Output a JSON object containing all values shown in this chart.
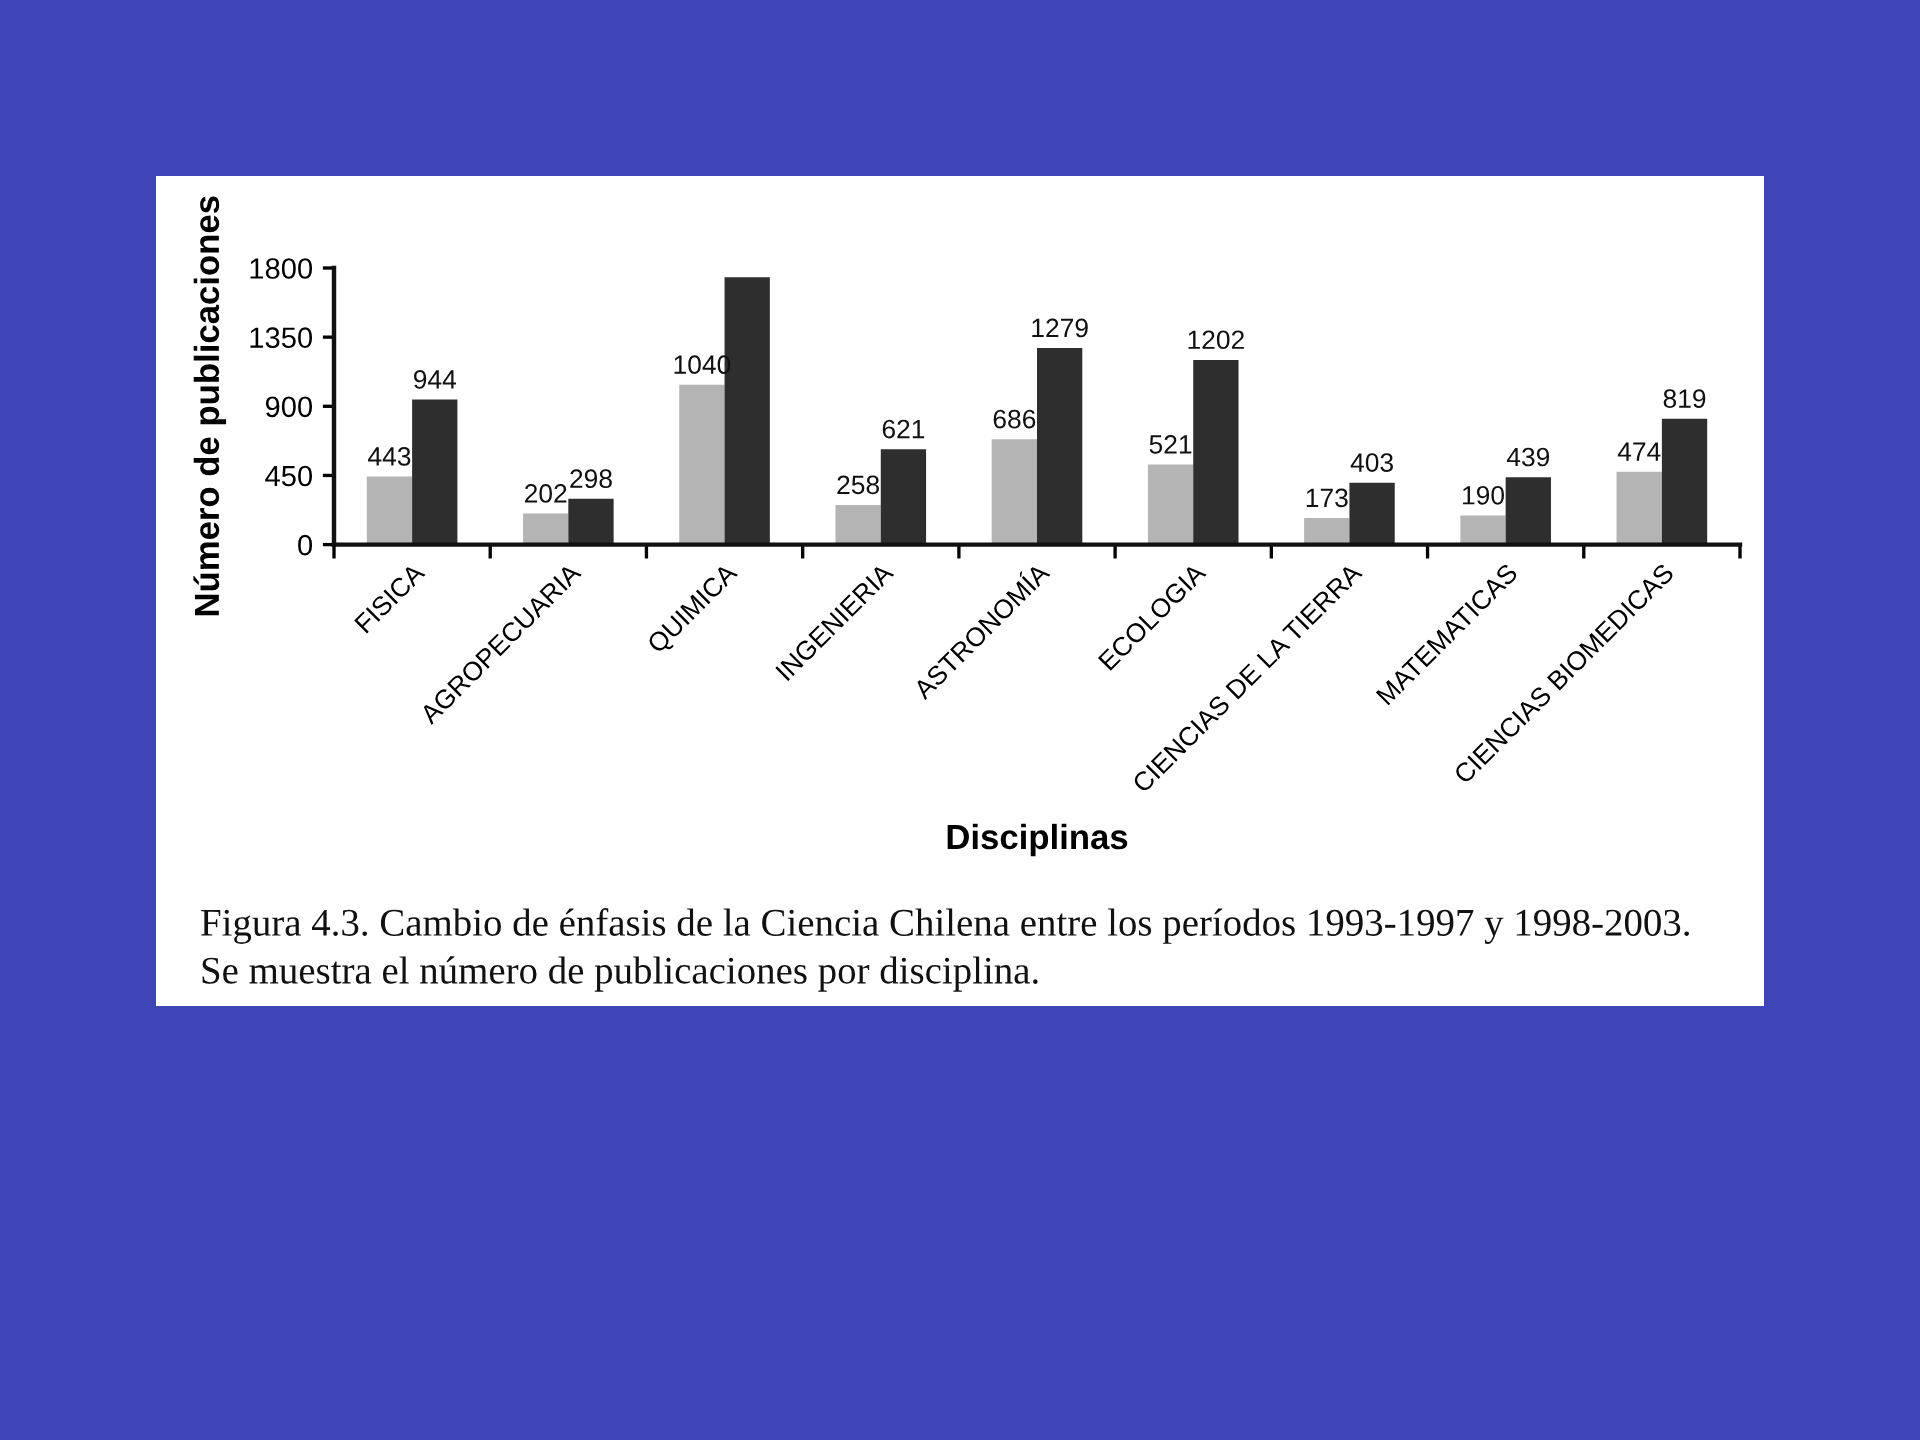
{
  "chart_data": {
    "type": "bar",
    "xlabel": "Disciplinas",
    "ylabel": "Número de publicaciones",
    "categories": [
      "FISICA",
      "AGROPECUARIA",
      "QUIMICA",
      "INGENIERIA",
      "ASTRONOMÍA",
      "ECOLOGIA",
      "CIENCIAS DE LA TIERRA",
      "MATEMATICAS",
      "CIENCIAS BIOMEDICAS"
    ],
    "series": [
      {
        "color": "#b4b4b4",
        "values": [
          443,
          202,
          1040,
          258,
          686,
          521,
          173,
          190,
          474
        ],
        "value_labels": [
          "443",
          "202",
          "1040",
          "258",
          "686",
          "521",
          "173",
          "190",
          "474"
        ]
      },
      {
        "color": "#2e2e2e",
        "values": [
          944,
          298,
          1740,
          621,
          1279,
          1202,
          403,
          439,
          819
        ],
        "value_labels": [
          "944",
          "298",
          null,
          "621",
          "1279",
          "1202",
          "403",
          "439",
          "819"
        ]
      }
    ],
    "ylim": [
      0,
      1800
    ],
    "yticks": [
      0,
      450,
      900,
      1350,
      1800
    ],
    "annotations": [
      "Figura 4.3. Cambio de énfasis de la Ciencia Chilena entre los períodos 1993-1997 y 1998-2003.",
      "Se muestra el número de publicaciones por disciplina."
    ]
  }
}
